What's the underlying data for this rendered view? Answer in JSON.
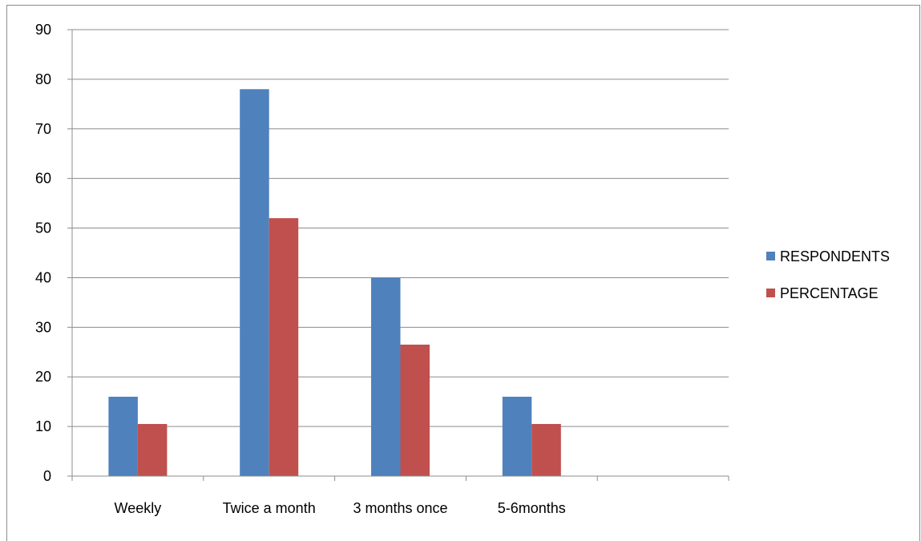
{
  "chart_data": {
    "type": "bar",
    "title": "",
    "xlabel": "",
    "ylabel": "",
    "ylim": [
      0,
      90
    ],
    "yticks": [
      0,
      10,
      20,
      30,
      40,
      50,
      60,
      70,
      80,
      90
    ],
    "categories": [
      "Weekly",
      "Twice a month",
      "3 months once",
      "5-6months",
      ""
    ],
    "series": [
      {
        "name": "RESPONDENTS",
        "color": "#4f81bd",
        "values": [
          16,
          78,
          40,
          16,
          null
        ]
      },
      {
        "name": "PERCENTAGE",
        "color": "#c0504d",
        "values": [
          10.5,
          52,
          26.5,
          10.5,
          null
        ]
      }
    ],
    "grid": true,
    "legend_position": "right"
  }
}
